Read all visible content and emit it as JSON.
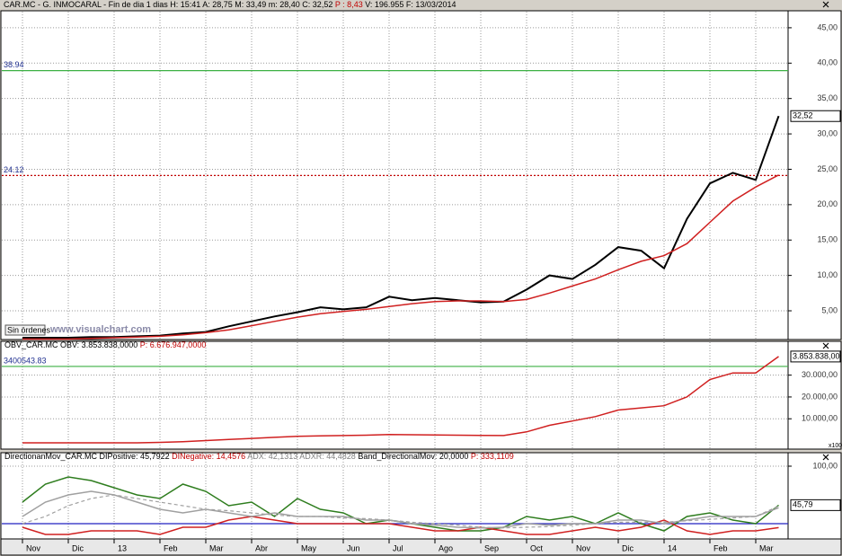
{
  "window": {
    "header": [
      {
        "text": "CAR.MC - G. INMOCARAL - Fin de dia 1 dias H: 15:41 A: 28,75 M: 33,49 m: 28,40 C: 32,52",
        "color": "#000000"
      },
      {
        "text": "P : 8,43",
        "color": "#c00000"
      },
      {
        "text": "V: 196.955 F: 13/03/2014",
        "color": "#000000"
      }
    ],
    "status": "Sin órdenes",
    "watermark": "www.visualchart.com",
    "scale_note": "x100"
  },
  "chart_data": [
    {
      "type": "line",
      "title_parts": [],
      "ylim": [
        0.94,
        47.4
      ],
      "yticks": [
        {
          "value": 5,
          "label": "5,00"
        },
        {
          "value": 10,
          "label": "10,00"
        },
        {
          "value": 15,
          "label": "15,00"
        },
        {
          "value": 20,
          "label": "20,00"
        },
        {
          "value": 25,
          "label": "25,00"
        },
        {
          "value": 30,
          "label": "30,00"
        },
        {
          "value": 35,
          "label": "35,00"
        },
        {
          "value": 40,
          "label": "40,00"
        },
        {
          "value": 45,
          "label": "45,00"
        }
      ],
      "grid": true,
      "series": [
        {
          "name": "CAR.MC",
          "color": "#000000",
          "width": 2,
          "values": [
            1.2,
            1.2,
            1.2,
            1.3,
            1.3,
            1.4,
            1.5,
            1.8,
            2.0,
            2.8,
            3.5,
            4.2,
            4.8,
            5.5,
            5.2,
            5.5,
            7.0,
            6.5,
            6.8,
            6.5,
            6.2,
            6.3,
            8.0,
            10.0,
            9.5,
            11.5,
            14.0,
            13.5,
            11.0,
            18.0,
            23.0,
            24.5,
            23.5,
            32.52
          ]
        },
        {
          "name": "MA",
          "color": "#d02020",
          "width": 1.5,
          "values": [
            1,
            1,
            1,
            1.1,
            1.2,
            1.3,
            1.4,
            1.6,
            1.9,
            2.3,
            2.9,
            3.5,
            4.1,
            4.6,
            4.9,
            5.2,
            5.6,
            6.0,
            6.3,
            6.4,
            6.4,
            6.3,
            6.6,
            7.5,
            8.5,
            9.5,
            10.8,
            12.0,
            12.8,
            14.5,
            17.5,
            20.5,
            22.5,
            24.2
          ]
        }
      ],
      "ref_lines": [
        {
          "value": 38.94,
          "label": "38.94",
          "color": "#3cb043",
          "dashed": false
        },
        {
          "value": 24.12,
          "label": "24.12",
          "color": "#c00000",
          "dashed": true
        }
      ],
      "last": {
        "value": 32.52,
        "label": "32,52"
      }
    },
    {
      "type": "line",
      "title_parts": [
        {
          "text": "OBV_CAR.MC OBV: 3.853.838,0000",
          "color": "#000000"
        },
        {
          "text": "P: 6.676.947,0000",
          "color": "#c00000"
        }
      ],
      "ylim": [
        -390000,
        4550000
      ],
      "yticks": [
        {
          "value": 1000000,
          "label": "10.000,00"
        },
        {
          "value": 2000000,
          "label": "20.000,00"
        },
        {
          "value": 3000000,
          "label": "30.000,00"
        }
      ],
      "grid": true,
      "series": [
        {
          "name": "OBV",
          "color": "#d02020",
          "width": 1.5,
          "values": [
            -100000,
            -100000,
            -100000,
            -100000,
            -100000,
            -100000,
            -80000,
            -50000,
            0,
            50000,
            100000,
            150000,
            200000,
            220000,
            230000,
            250000,
            280000,
            270000,
            260000,
            250000,
            240000,
            230000,
            400000,
            700000,
            900000,
            1100000,
            1400000,
            1500000,
            1600000,
            2000000,
            2800000,
            3100000,
            3100000,
            3853838
          ]
        }
      ],
      "ref_lines": [
        {
          "value": 3400543.83,
          "label": "3400543.83",
          "color": "#3cb043",
          "dashed": false
        }
      ],
      "last": {
        "value": 3853838,
        "label": "3.853.838,00"
      }
    },
    {
      "type": "line",
      "title_parts": [
        {
          "text": "DirectionanMov_CAR.MC",
          "color": "#000000"
        },
        {
          "text": "DIPositive: 45,7922",
          "color": "#000000"
        },
        {
          "text": "DINegative: 14,4576",
          "color": "#c00000"
        },
        {
          "text": "ADX: 42,1313",
          "color": "#808080"
        },
        {
          "text": "ADXR: 44,4828",
          "color": "#808080"
        },
        {
          "text": "Band_DirectionalMov: 20,0000",
          "color": "#000000"
        },
        {
          "text": "P: 333,1109",
          "color": "#c00000"
        }
      ],
      "ylim": [
        -1.25,
        118.75
      ],
      "yticks": [
        {
          "value": 100,
          "label": "100,00"
        }
      ],
      "grid": true,
      "categories": [
        "Nov",
        null,
        "Dic",
        null,
        "13",
        null,
        "Feb",
        null,
        "Mar",
        null,
        "Abr",
        null,
        "May",
        null,
        "Jun",
        null,
        "Jul",
        null,
        "Ago",
        null,
        "Sep",
        null,
        "Oct",
        null,
        "Nov",
        null,
        "Dic",
        null,
        "14",
        null,
        "Feb",
        null,
        "Mar",
        null
      ],
      "series": [
        {
          "name": "DIPositive",
          "color": "#2e7d1e",
          "width": 1.5,
          "values": [
            50,
            75,
            85,
            80,
            70,
            60,
            55,
            75,
            65,
            45,
            50,
            30,
            55,
            40,
            35,
            20,
            25,
            20,
            15,
            10,
            10,
            15,
            30,
            25,
            30,
            20,
            35,
            20,
            10,
            30,
            35,
            25,
            20,
            45.79
          ]
        },
        {
          "name": "DINegative",
          "color": "#d02020",
          "width": 1.5,
          "values": [
            15,
            5,
            5,
            10,
            10,
            10,
            5,
            15,
            15,
            25,
            30,
            25,
            20,
            20,
            20,
            20,
            20,
            15,
            10,
            10,
            15,
            10,
            5,
            5,
            10,
            15,
            10,
            15,
            25,
            10,
            5,
            10,
            10,
            14.46
          ]
        },
        {
          "name": "ADX",
          "color": "#a0a0a0",
          "width": 1.5,
          "values": [
            30,
            50,
            60,
            65,
            60,
            50,
            40,
            35,
            40,
            35,
            30,
            35,
            30,
            30,
            30,
            25,
            25,
            20,
            18,
            15,
            14,
            15,
            20,
            18,
            20,
            20,
            25,
            25,
            20,
            25,
            30,
            30,
            30,
            42.13
          ]
        },
        {
          "name": "ADXR",
          "color": "#a0a0a0",
          "width": 1.2,
          "dashed": true,
          "values": [
            20,
            30,
            45,
            55,
            60,
            55,
            50,
            45,
            40,
            38,
            35,
            32,
            30,
            30,
            28,
            27,
            25,
            22,
            20,
            18,
            15,
            14,
            15,
            16,
            18,
            20,
            22,
            22,
            22,
            24,
            26,
            28,
            30,
            44.48
          ]
        }
      ],
      "ref_lines": [
        {
          "value": 20,
          "color": "#2020c0",
          "dashed": false
        }
      ],
      "last": {
        "value": 45.79,
        "label": "45,79"
      }
    }
  ]
}
